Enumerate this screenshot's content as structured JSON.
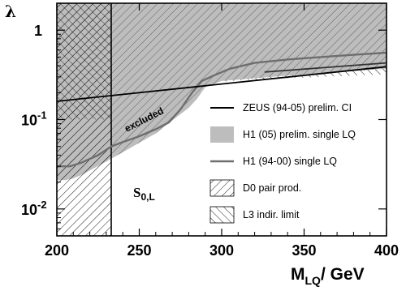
{
  "chart_data": {
    "type": "line",
    "xlabel_main": "M",
    "xlabel_sub": "LQ",
    "xlabel_unit": "/ GeV",
    "ylabel": "λ",
    "x_range": [
      200,
      400
    ],
    "y_range": [
      0.005,
      2.0
    ],
    "y_scale": "log",
    "x_ticks": [
      200,
      250,
      300,
      350,
      400
    ],
    "x_tick_labels": [
      "200",
      "250",
      "300",
      "350",
      "400"
    ],
    "y_ticks": [
      0.01,
      0.1,
      1
    ],
    "y_tick_labels": [
      {
        "base": "10",
        "exp": "-2"
      },
      {
        "base": "10",
        "exp": "-1"
      },
      {
        "base": "1",
        "exp": ""
      }
    ],
    "annotations": {
      "excluded": "excluded",
      "scalar_main": "S",
      "scalar_sub": "0,L"
    },
    "legend_position": "right",
    "legend": [
      {
        "key": "zeus",
        "label": "ZEUS (94-05) prelim. CI",
        "style": "dark-line"
      },
      {
        "key": "h1_05",
        "label": "H1 (05) prelim. single LQ",
        "style": "gray-fill"
      },
      {
        "key": "h1_94",
        "label": "H1 (94-00) single LQ",
        "style": "gray-line"
      },
      {
        "key": "d0",
        "label": "D0 pair prod.",
        "style": "hatch-backslash"
      },
      {
        "key": "l3",
        "label": "L3 indir. limit",
        "style": "hatch-slash"
      }
    ],
    "series": [
      {
        "name": "ZEUS (94-05) prelim. CI",
        "x": [
          200,
          400
        ],
        "y": [
          0.16,
          0.39
        ]
      },
      {
        "name": "H1 (05) prelim. single LQ",
        "x": [
          200,
          205,
          210,
          215,
          220,
          230,
          240,
          250,
          260,
          270,
          280,
          285,
          290,
          300,
          320,
          340,
          360,
          380,
          400
        ],
        "y": [
          0.021,
          0.021,
          0.022,
          0.024,
          0.027,
          0.034,
          0.043,
          0.055,
          0.07,
          0.098,
          0.135,
          0.17,
          0.23,
          0.27,
          0.29,
          0.31,
          0.33,
          0.35,
          0.37
        ]
      },
      {
        "name": "H1 (94-00) single LQ",
        "x": [
          200,
          208,
          215,
          225,
          233,
          240,
          250,
          260,
          268,
          275,
          282,
          288,
          295,
          305,
          320,
          340,
          360,
          380,
          400
        ],
        "y": [
          0.03,
          0.03,
          0.033,
          0.04,
          0.05,
          0.056,
          0.065,
          0.078,
          0.093,
          0.13,
          0.2,
          0.27,
          0.31,
          0.37,
          0.43,
          0.47,
          0.5,
          0.53,
          0.56
        ]
      },
      {
        "name": "ZEUS (94-05) prelim. CI (upper segment)",
        "x": [
          326,
          400
        ],
        "y": [
          0.34,
          0.43
        ]
      },
      {
        "name": "D0 pair prod.",
        "x": [
          233,
          233
        ],
        "y": [
          0.005,
          2.0
        ]
      },
      {
        "name": "L3 indir. limit",
        "x": [
          290,
          320,
          340,
          360,
          380,
          400
        ],
        "y": [
          0.26,
          0.28,
          0.29,
          0.3,
          0.31,
          0.32
        ]
      }
    ]
  }
}
